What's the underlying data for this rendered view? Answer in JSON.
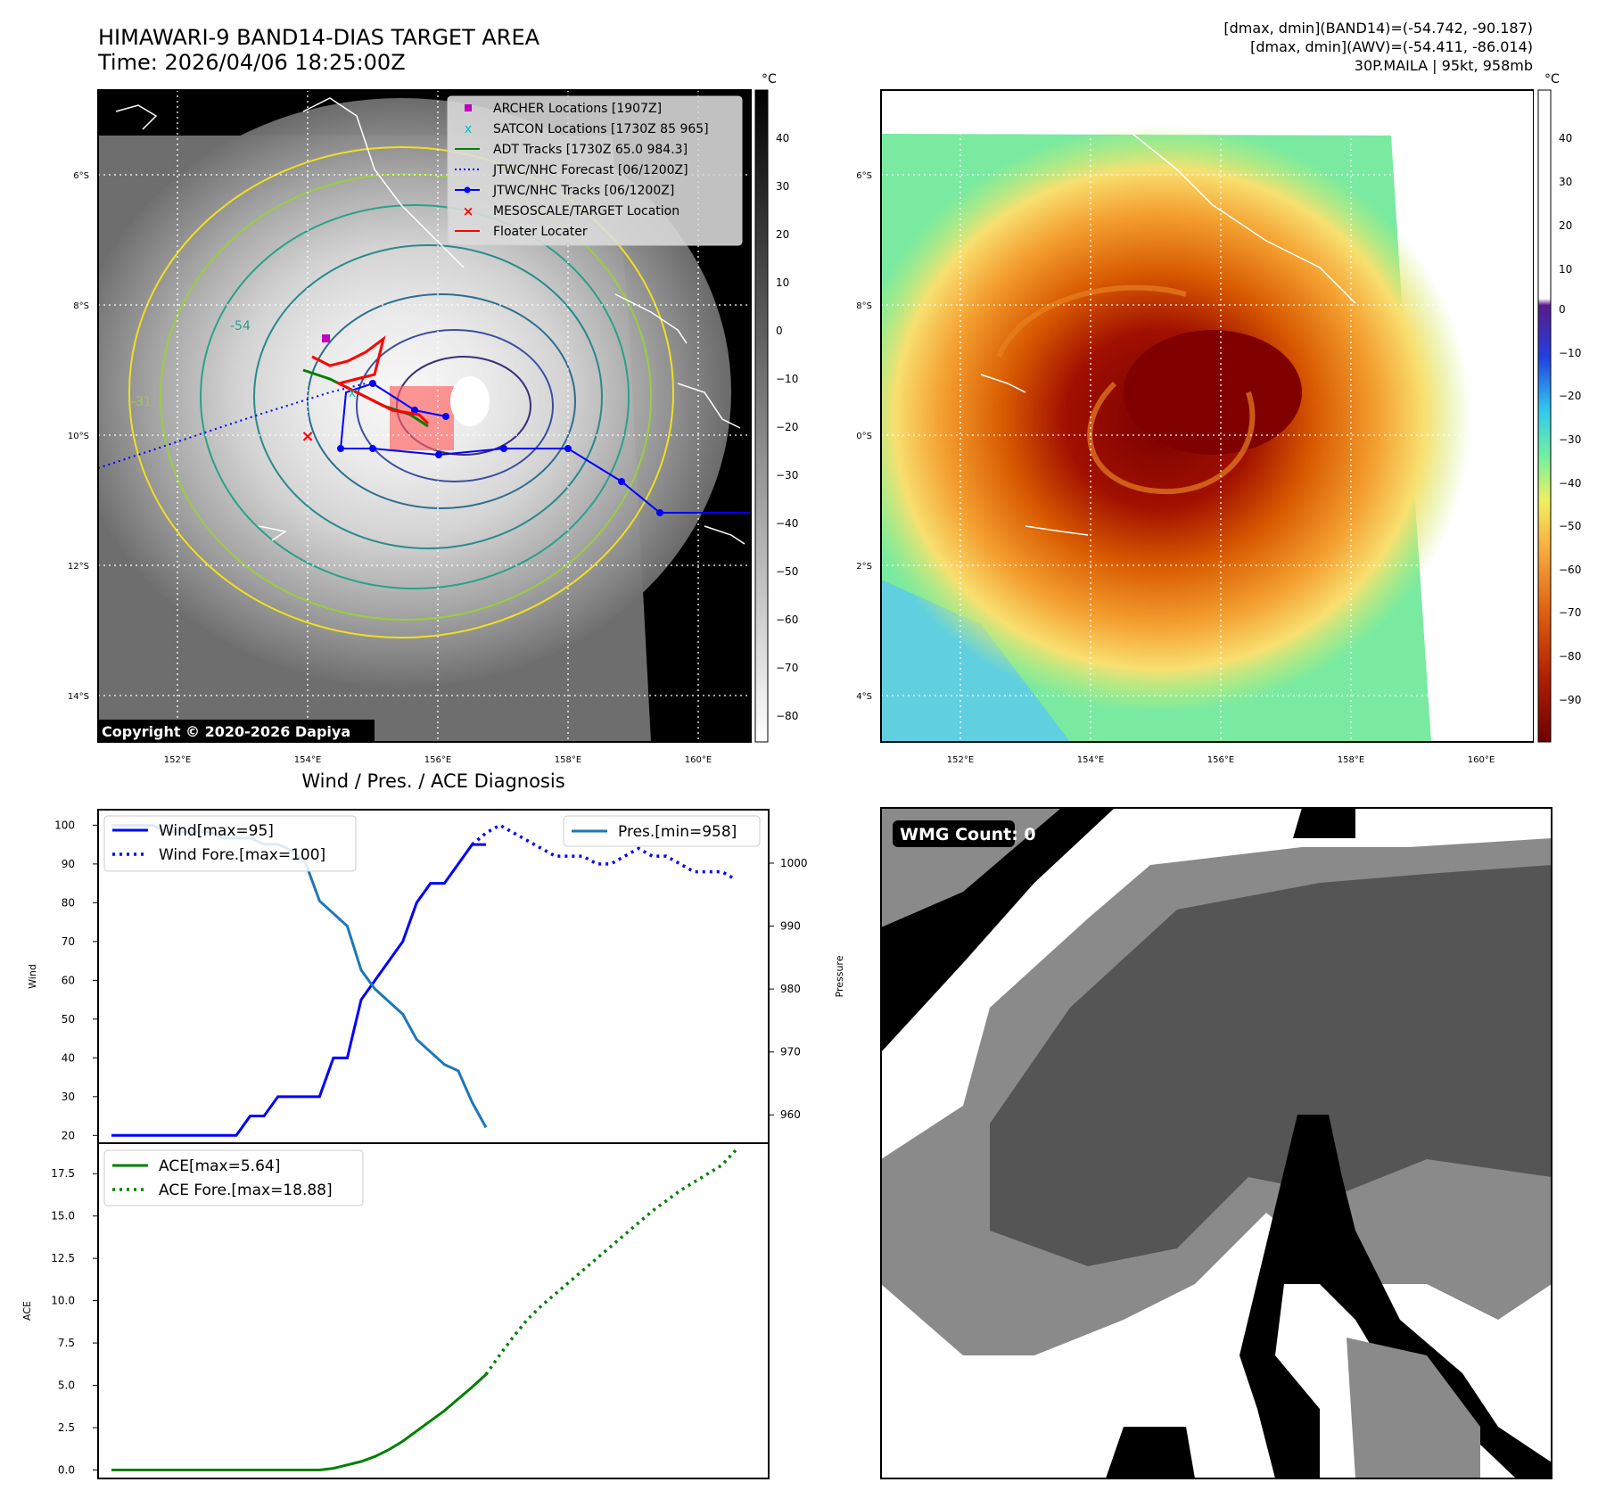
{
  "header": {
    "title_line1": "HIMAWARI-9 BAND14-DIAS TARGET AREA",
    "title_line2": "Time: 2026/04/06 18:25:00Z",
    "info_line1": "[dmax, dmin](BAND14)=(-54.742, -90.187)",
    "info_line2": "[dmax, dmin](AWV)=(-54.411, -86.014)",
    "info_line3": "30P.MAILA | 95kt, 958mb"
  },
  "map_panel": {
    "lat_ticks": [
      "6°S",
      "8°S",
      "10°S",
      "12°S",
      "14°S"
    ],
    "lon_ticks": [
      "152°E",
      "154°E",
      "156°E",
      "158°E",
      "160°E"
    ],
    "copyright": "Copyright © 2020-2026 Dapiya",
    "contour_labels": [
      "-54",
      "-31"
    ],
    "legend": [
      {
        "label": "ARCHER Locations [1907Z]",
        "color": "#c000c0",
        "marker": "square"
      },
      {
        "label": "SATCON Locations [1730Z 85 965]",
        "color": "#00c0c0",
        "marker": "x"
      },
      {
        "label": "ADT Tracks [1730Z 65.0 984.3]",
        "color": "#008000",
        "marker": "line"
      },
      {
        "label": "JTWC/NHC Forecast [06/1200Z]",
        "color": "#0000ff",
        "marker": "dotted"
      },
      {
        "label": "JTWC/NHC Tracks [06/1200Z]",
        "color": "#0000ff",
        "marker": "line-dot"
      },
      {
        "label": "MESOSCALE/TARGET Location",
        "color": "#ff0000",
        "marker": "x"
      },
      {
        "label": "Floater Locater",
        "color": "#ff0000",
        "marker": "line"
      }
    ]
  },
  "colorbar_gray": {
    "unit": "°C",
    "ticks": [
      "40",
      "30",
      "20",
      "10",
      "0",
      "−10",
      "−20",
      "−30",
      "−40",
      "−50",
      "−60",
      "−70",
      "−80"
    ]
  },
  "colorbar_color": {
    "unit": "°C",
    "ticks": [
      "40",
      "30",
      "20",
      "10",
      "0",
      "−10",
      "−20",
      "−30",
      "−40",
      "−50",
      "−60",
      "−70",
      "−80",
      "−90"
    ]
  },
  "wmg_panel": {
    "label": "WMG Count: 0"
  },
  "chart_data": [
    {
      "type": "line",
      "title": "Wind / Pres. / ACE Diagnosis",
      "ylabel": "Wind",
      "ylabel_right": "Pressure",
      "ylim": [
        18,
        104
      ],
      "ylim_right": [
        955.5,
        1008.5
      ],
      "yticks": [
        20,
        30,
        40,
        50,
        60,
        70,
        80,
        90,
        100
      ],
      "yticks_right": [
        960,
        970,
        980,
        990,
        1000
      ],
      "series": [
        {
          "name": "Wind[max=95]",
          "color": "#0000ff",
          "style": "solid",
          "axis": "left",
          "x": [
            0,
            1,
            2,
            3,
            4,
            5,
            6,
            7,
            8,
            9,
            10,
            11,
            12,
            13,
            14,
            15,
            16,
            17,
            18,
            19,
            20,
            21,
            22,
            23,
            24,
            25,
            26,
            27
          ],
          "values": [
            20,
            20,
            20,
            20,
            20,
            20,
            20,
            20,
            20,
            20,
            25,
            25,
            30,
            30,
            30,
            30,
            40,
            40,
            55,
            60,
            65,
            70,
            80,
            85,
            85,
            90,
            95,
            95
          ]
        },
        {
          "name": "Wind Fore.[max=100]",
          "color": "#0000ff",
          "style": "dotted",
          "axis": "left",
          "x": [
            26,
            27,
            28,
            29,
            30,
            31,
            32,
            33,
            34,
            35,
            36,
            37,
            38,
            39,
            40,
            41,
            42,
            43,
            44,
            45
          ],
          "values": [
            95,
            98,
            100,
            98,
            96,
            94,
            92,
            92,
            92,
            90,
            90,
            92,
            94,
            92,
            92,
            90,
            88,
            88,
            88,
            86
          ]
        }
      ],
      "series_right": [
        {
          "name": "Pres.[min=958]",
          "color": "#1f77b4",
          "style": "solid",
          "x": [
            0,
            1,
            2,
            3,
            4,
            5,
            6,
            7,
            8,
            9,
            10,
            11,
            12,
            13,
            14,
            15,
            16,
            17,
            18,
            19,
            20,
            21,
            22,
            23,
            24,
            25,
            26,
            27
          ],
          "values": [
            1006,
            1006,
            1006,
            1006,
            1005,
            1005,
            1005,
            1005,
            1004,
            1004,
            1004,
            1003,
            1003,
            1002,
            1000,
            994,
            992,
            990,
            983,
            980,
            978,
            976,
            972,
            970,
            968,
            967,
            962,
            958
          ]
        }
      ]
    },
    {
      "type": "line",
      "ylabel": "ACE",
      "ylim": [
        -0.5,
        19.3
      ],
      "yticks": [
        0.0,
        2.5,
        5.0,
        7.5,
        10.0,
        12.5,
        15.0,
        17.5
      ],
      "series": [
        {
          "name": "ACE[max=5.64]",
          "color": "#008000",
          "style": "solid",
          "x": [
            0,
            1,
            2,
            3,
            4,
            5,
            6,
            7,
            8,
            9,
            10,
            11,
            12,
            13,
            14,
            15,
            16,
            17,
            18,
            19,
            20,
            21,
            22,
            23,
            24,
            25,
            26,
            27
          ],
          "values": [
            0,
            0,
            0,
            0,
            0,
            0,
            0,
            0,
            0,
            0,
            0,
            0,
            0,
            0,
            0,
            0,
            0.1,
            0.3,
            0.5,
            0.8,
            1.2,
            1.7,
            2.3,
            2.9,
            3.5,
            4.2,
            4.9,
            5.64
          ]
        },
        {
          "name": "ACE Fore.[max=18.88]",
          "color": "#008000",
          "style": "dotted",
          "x": [
            27,
            28,
            29,
            30,
            31,
            32,
            33,
            34,
            35,
            36,
            37,
            38,
            39,
            40,
            41,
            42,
            43,
            44,
            45
          ],
          "values": [
            5.64,
            6.8,
            7.9,
            8.9,
            9.7,
            10.4,
            11.1,
            11.8,
            12.5,
            13.2,
            13.9,
            14.6,
            15.3,
            15.9,
            16.5,
            17.0,
            17.5,
            18.0,
            18.88
          ]
        }
      ]
    }
  ]
}
